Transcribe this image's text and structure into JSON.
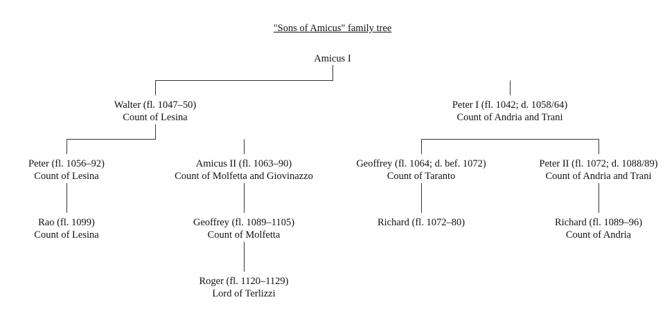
{
  "title": "\"Sons of Amicus\" family tree",
  "nodes": {
    "amicus1": {
      "name": "Amicus I"
    },
    "walter": {
      "name": "Walter (fl. 1047–50)",
      "title": "Count of Lesina"
    },
    "peter1": {
      "name": "Peter I (fl. 1042; d. 1058/64)",
      "title": "Count of Andria and Trani"
    },
    "peter": {
      "name": "Peter (fl. 1056–92)",
      "title": "Count of Lesina"
    },
    "amicus2": {
      "name": "Amicus II (fl. 1063–90)",
      "title": "Count of Molfetta and Giovinazzo"
    },
    "geoffrey_t": {
      "name": "Geoffrey (fl. 1064; d. bef. 1072)",
      "title": "Count of Taranto"
    },
    "peter2": {
      "name": "Peter II (fl. 1072; d. 1088/89)",
      "title": "Count of Andria and Trani"
    },
    "rao": {
      "name": "Rao (fl. 1099)",
      "title": "Count of Lesina"
    },
    "geoffrey_m": {
      "name": "Geoffrey (fl. 1089–1105)",
      "title": "Count of Molfetta"
    },
    "richard1": {
      "name": "Richard (fl. 1072–80)"
    },
    "richard2": {
      "name": "Richard (fl. 1089–96)",
      "title": "Count of Andria"
    },
    "roger": {
      "name": "Roger (fl. 1120–1129)",
      "title": "Lord of Terlizzi"
    }
  }
}
